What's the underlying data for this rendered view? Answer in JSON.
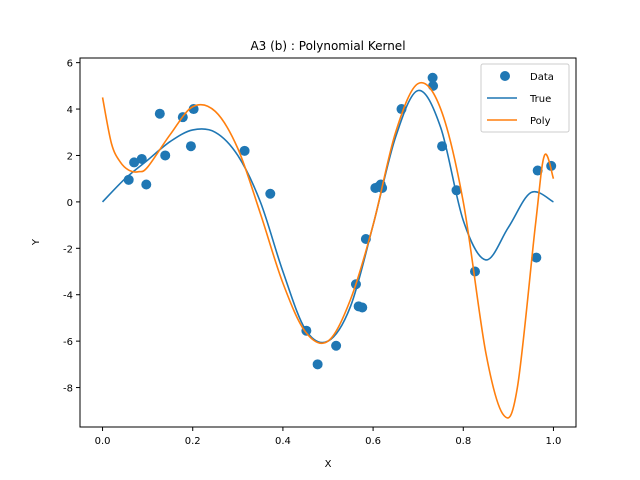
{
  "chart_data": {
    "type": "scatter",
    "title": "A3 (b) : Polynomial Kernel",
    "xlabel": "X",
    "ylabel": "Y",
    "xlim": [
      -0.05,
      1.05
    ],
    "ylim": [
      -9.7,
      6.2
    ],
    "xticks": [
      "0.0",
      "0.2",
      "0.4",
      "0.6",
      "0.8",
      "1.0"
    ],
    "yticks": [
      "6",
      "4",
      "2",
      "0",
      "-2",
      "-4",
      "-6",
      "-8"
    ],
    "grid": false,
    "legend_position": "top-right",
    "legend": [
      "Data",
      "True",
      "Poly"
    ],
    "series": [
      {
        "name": "Data",
        "type": "scatter",
        "color": "#1f77b4",
        "points": [
          [
            0.058,
            0.95
          ],
          [
            0.07,
            1.7
          ],
          [
            0.087,
            1.85
          ],
          [
            0.097,
            0.75
          ],
          [
            0.127,
            3.8
          ],
          [
            0.139,
            2.0
          ],
          [
            0.178,
            3.65
          ],
          [
            0.196,
            2.4
          ],
          [
            0.202,
            4.0
          ],
          [
            0.315,
            2.2
          ],
          [
            0.372,
            0.35
          ],
          [
            0.452,
            -5.55
          ],
          [
            0.477,
            -7.0
          ],
          [
            0.518,
            -6.2
          ],
          [
            0.562,
            -3.55
          ],
          [
            0.568,
            -4.5
          ],
          [
            0.576,
            -4.55
          ],
          [
            0.584,
            -1.6
          ],
          [
            0.605,
            0.6
          ],
          [
            0.612,
            0.65
          ],
          [
            0.617,
            0.75
          ],
          [
            0.62,
            0.6
          ],
          [
            0.663,
            4.0
          ],
          [
            0.732,
            5.35
          ],
          [
            0.733,
            5.0
          ],
          [
            0.753,
            2.4
          ],
          [
            0.785,
            0.5
          ],
          [
            0.826,
            -3.0
          ],
          [
            0.962,
            -2.4
          ],
          [
            0.965,
            1.35
          ],
          [
            0.995,
            1.55
          ]
        ]
      },
      {
        "name": "True",
        "type": "line",
        "color": "#1f77b4",
        "x": [
          0.0,
          0.05,
          0.1,
          0.15,
          0.2,
          0.25,
          0.3,
          0.35,
          0.4,
          0.45,
          0.5,
          0.55,
          0.6,
          0.65,
          0.7,
          0.75,
          0.8,
          0.85,
          0.9,
          0.95,
          1.0
        ],
        "y": [
          0.0,
          1.0,
          1.8,
          2.6,
          3.1,
          3.0,
          2.0,
          0.0,
          -3.0,
          -5.5,
          -6.0,
          -4.5,
          -1.0,
          2.8,
          4.8,
          3.2,
          -0.8,
          -2.5,
          -1.1,
          0.4,
          0.0
        ]
      },
      {
        "name": "Poly",
        "type": "line",
        "color": "#ff7f0e",
        "x": [
          0.0,
          0.02,
          0.04,
          0.06,
          0.08,
          0.1,
          0.15,
          0.2,
          0.25,
          0.3,
          0.35,
          0.4,
          0.45,
          0.5,
          0.55,
          0.6,
          0.65,
          0.7,
          0.75,
          0.8,
          0.85,
          0.89,
          0.92,
          0.96,
          0.98,
          1.0
        ],
        "y": [
          4.5,
          2.5,
          1.7,
          1.35,
          1.3,
          1.5,
          2.9,
          4.1,
          3.9,
          2.3,
          -0.5,
          -3.5,
          -5.6,
          -6.0,
          -4.2,
          -1.0,
          3.0,
          5.1,
          4.0,
          0.0,
          -6.5,
          -9.2,
          -8.0,
          -1.0,
          2.0,
          1.0
        ]
      }
    ]
  }
}
